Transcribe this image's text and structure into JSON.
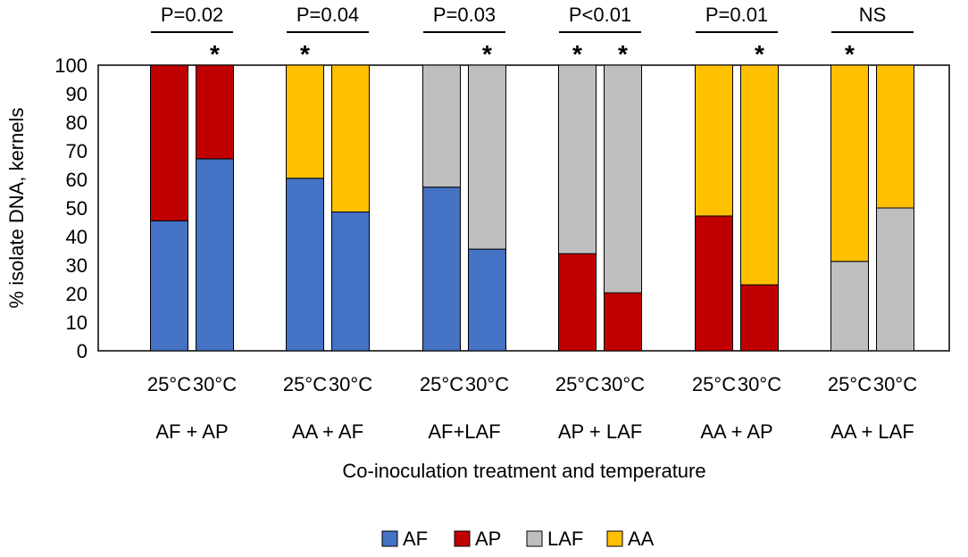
{
  "chart_data": {
    "type": "bar",
    "stacked": true,
    "title": "",
    "ylabel": "% isolate DNA, kernels",
    "xlabel": "Co-inoculation treatment and temperature",
    "ylim": [
      0,
      100
    ],
    "yticks": [
      0,
      10,
      20,
      30,
      40,
      50,
      60,
      70,
      80,
      90,
      100
    ],
    "grid": false,
    "legend_position": "bottom",
    "series": [
      {
        "name": "AF",
        "color": "#4472C4"
      },
      {
        "name": "AP",
        "color": "#C00000"
      },
      {
        "name": "LAF",
        "color": "#BFBFBF"
      },
      {
        "name": "AA",
        "color": "#FFC000"
      }
    ],
    "groups": [
      {
        "label": "AF + AP",
        "pvalue": "P=0.02",
        "bars": [
          {
            "category": "25°C",
            "star": false,
            "segments": [
              {
                "series": "AF",
                "value": 45.5
              },
              {
                "series": "AP",
                "value": 54.5
              }
            ]
          },
          {
            "category": "30°C",
            "star": true,
            "segments": [
              {
                "series": "AF",
                "value": 67.2
              },
              {
                "series": "AP",
                "value": 32.8
              }
            ]
          }
        ]
      },
      {
        "label": "AA + AF",
        "pvalue": "P=0.04",
        "bars": [
          {
            "category": "25°C",
            "star": true,
            "segments": [
              {
                "series": "AF",
                "value": 60.4
              },
              {
                "series": "AA",
                "value": 39.6
              }
            ]
          },
          {
            "category": "30°C",
            "star": false,
            "segments": [
              {
                "series": "AF",
                "value": 48.6
              },
              {
                "series": "AA",
                "value": 51.4
              }
            ]
          }
        ]
      },
      {
        "label": "AF+LAF",
        "pvalue": "P=0.03",
        "bars": [
          {
            "category": "25°C",
            "star": false,
            "segments": [
              {
                "series": "AF",
                "value": 57.3
              },
              {
                "series": "LAF",
                "value": 42.7
              }
            ]
          },
          {
            "category": "30°C",
            "star": true,
            "segments": [
              {
                "series": "AF",
                "value": 35.6
              },
              {
                "series": "LAF",
                "value": 64.4
              }
            ]
          }
        ]
      },
      {
        "label": "AP + LAF",
        "pvalue": "P<0.01",
        "bars": [
          {
            "category": "25°C",
            "star": true,
            "segments": [
              {
                "series": "AP",
                "value": 34.0
              },
              {
                "series": "LAF",
                "value": 66.0
              }
            ]
          },
          {
            "category": "30°C",
            "star": true,
            "segments": [
              {
                "series": "AP",
                "value": 20.3
              },
              {
                "series": "LAF",
                "value": 79.7
              }
            ]
          }
        ]
      },
      {
        "label": "AA + AP",
        "pvalue": "P=0.01",
        "bars": [
          {
            "category": "25°C",
            "star": false,
            "segments": [
              {
                "series": "AP",
                "value": 47.2
              },
              {
                "series": "AA",
                "value": 52.8
              }
            ]
          },
          {
            "category": "30°C",
            "star": true,
            "segments": [
              {
                "series": "AP",
                "value": 23.1
              },
              {
                "series": "AA",
                "value": 76.9
              }
            ]
          }
        ]
      },
      {
        "label": "AA + LAF",
        "pvalue": "NS",
        "bars": [
          {
            "category": "25°C",
            "star": true,
            "segments": [
              {
                "series": "LAF",
                "value": 31.3
              },
              {
                "series": "AA",
                "value": 68.7
              }
            ]
          },
          {
            "category": "30°C",
            "star": false,
            "segments": [
              {
                "series": "LAF",
                "value": 50.0
              },
              {
                "series": "AA",
                "value": 50.0
              }
            ]
          }
        ]
      }
    ],
    "star_symbol": "*"
  }
}
